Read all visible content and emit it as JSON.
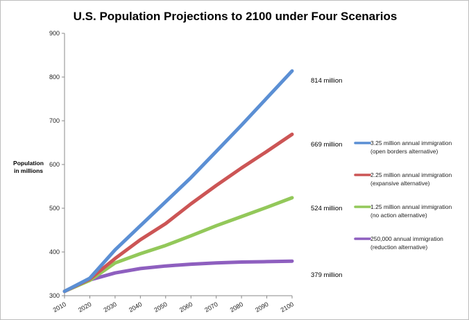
{
  "chart_data": {
    "type": "line",
    "title": "U.S. Population Projections to 2100 under Four Scenarios",
    "xlabel": "",
    "ylabel": [
      "Population",
      "in millions"
    ],
    "x": [
      2010,
      2020,
      2030,
      2040,
      2050,
      2060,
      2070,
      2080,
      2090,
      2100
    ],
    "xlim": [
      2010,
      2100
    ],
    "ylim": [
      300,
      900
    ],
    "x_ticks": [
      "2010",
      "2020",
      "2030",
      "2040",
      "2050",
      "2060",
      "2070",
      "2080",
      "2090",
      "2100"
    ],
    "y_ticks": [
      "300",
      "400",
      "500",
      "600",
      "700",
      "800",
      "900"
    ],
    "grid": false,
    "legend_position": "right",
    "series": [
      {
        "name": "3.25 million annual immigration",
        "subname": "(open borders alternative)",
        "color": "#5b8fd4",
        "end_label": "814 million",
        "values": [
          310,
          340,
          405,
          460,
          515,
          570,
          630,
          690,
          752,
          814
        ]
      },
      {
        "name": "2.25 million annual immigration",
        "subname": "(expansive alternative)",
        "color": "#cc5555",
        "end_label": "669 million",
        "values": [
          310,
          338,
          385,
          428,
          465,
          510,
          552,
          592,
          630,
          669
        ]
      },
      {
        "name": "1.25 million annual immigration",
        "subname": "(no action alternative)",
        "color": "#93c85a",
        "end_label": "524 million",
        "values": [
          310,
          335,
          375,
          396,
          415,
          437,
          460,
          481,
          502,
          524
        ]
      },
      {
        "name": "250,000 annual immigration",
        "subname": "(reduction alternative)",
        "color": "#8e5fbf",
        "end_label": "379 million",
        "values": [
          310,
          336,
          352,
          362,
          368,
          372,
          375,
          377,
          378,
          379
        ]
      }
    ]
  }
}
